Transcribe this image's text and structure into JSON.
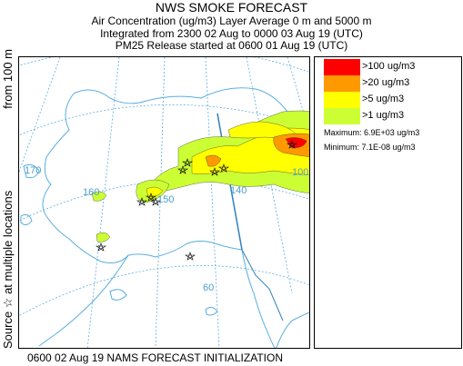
{
  "header": {
    "title": "NWS SMOKE FORECAST",
    "line1": "Air Concentration (ug/m3) Layer Average    0 m and  5000 m",
    "line2": "Integrated from 2300 02 Aug to 0000 03 Aug 19 (UTC)",
    "line3": "PM25 Release started at 0600 01 Aug 19 (UTC)"
  },
  "side_label": {
    "left": "Source ☆ at multiple locations",
    "right": "from   100 m"
  },
  "footer": "0600 02 Aug 19 NAMS FORECAST INITIALIZATION",
  "legend": {
    "items": [
      {
        "label": ">100 ug/m3",
        "color": "#ff0000"
      },
      {
        "label": ">20 ug/m3",
        "color": "#ff9900"
      },
      {
        "label": ">5 ug/m3",
        "color": "#ffff00"
      },
      {
        "label": ">1 ug/m3",
        "color": "#ccff33"
      }
    ],
    "maximum": "Maximum: 6.9E+03 ug/m3",
    "minimum": "Minimum: 7.1E-08 ug/m3"
  },
  "map": {
    "longitude_labels": [
      "170",
      "160",
      "150",
      "140",
      "100",
      "60"
    ],
    "colors": {
      "coast": "#5aaee0",
      "graticule": "#5aaee0",
      "border": "#3080c0"
    }
  }
}
